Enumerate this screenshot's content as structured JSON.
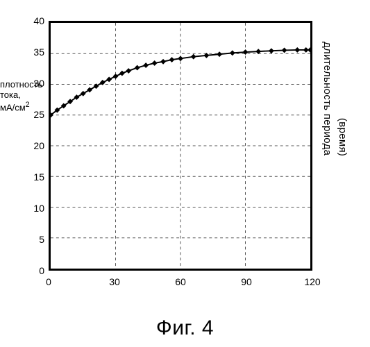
{
  "figure": {
    "type": "line",
    "background_color": "#ffffff",
    "border_color": "#000000",
    "grid_color": "#555555",
    "grid_dash": "4 4",
    "line_color": "#000000",
    "line_width": 2,
    "marker_style": "diamond",
    "marker_size": 4,
    "marker_color": "#000000",
    "xlim": [
      0,
      120
    ],
    "ylim": [
      0,
      40
    ],
    "xticks": [
      0,
      30,
      60,
      90,
      120
    ],
    "yticks": [
      0,
      5,
      10,
      15,
      20,
      25,
      30,
      35,
      40
    ],
    "series": {
      "x": [
        0,
        3,
        6,
        9,
        12,
        15,
        18,
        21,
        24,
        27,
        30,
        33,
        36,
        40,
        44,
        48,
        52,
        56,
        60,
        66,
        72,
        78,
        84,
        90,
        96,
        102,
        108,
        114,
        118,
        120
      ],
      "y": [
        25,
        25.8,
        26.5,
        27.2,
        27.9,
        28.5,
        29.1,
        29.7,
        30.3,
        30.8,
        31.3,
        31.8,
        32.2,
        32.7,
        33.1,
        33.45,
        33.7,
        34,
        34.2,
        34.5,
        34.7,
        34.9,
        35.1,
        35.25,
        35.35,
        35.45,
        35.55,
        35.6,
        35.6,
        35.6
      ]
    },
    "ylabel_line1": "плотность",
    "ylabel_line2": "тока,",
    "ylabel_line3": "мА/см",
    "ylabel_sup": "2",
    "xlabel_line1": "длительность периода",
    "xlabel_line2": "(время)",
    "caption": "Фиг. 4",
    "tick_fontsize": 14,
    "label_fontsize": 13,
    "caption_fontsize": 30
  }
}
